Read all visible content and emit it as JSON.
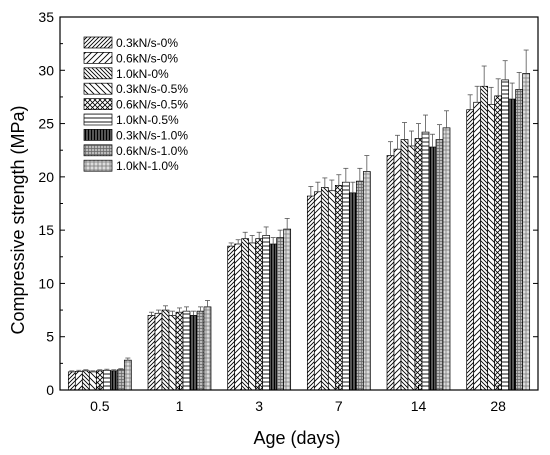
{
  "chart_data": {
    "type": "bar",
    "xlabel": "Age (days)",
    "ylabel": "Compressive strength (MPa)",
    "ylim": [
      0,
      35
    ],
    "yticks": [
      0,
      5,
      10,
      15,
      20,
      25,
      30,
      35
    ],
    "categories": [
      "0.5",
      "1",
      "3",
      "7",
      "14",
      "28"
    ],
    "legend_position": "top-left",
    "grid": false,
    "error_bars": true,
    "series": [
      {
        "name": "0.3kN/s-0%",
        "pattern": "diag-right",
        "values": [
          1.7,
          7.0,
          13.5,
          18.2,
          22.0,
          26.3
        ],
        "errors": [
          0.1,
          0.3,
          0.3,
          0.9,
          1.3,
          1.4
        ]
      },
      {
        "name": "0.6kN/s-0%",
        "pattern": "diag-right-sparse",
        "values": [
          1.75,
          7.2,
          13.7,
          18.6,
          22.6,
          27.0
        ],
        "errors": [
          0.1,
          0.3,
          0.4,
          0.9,
          1.3,
          1.5
        ]
      },
      {
        "name": "1.0kN-0%",
        "pattern": "diag-left",
        "values": [
          1.8,
          7.5,
          14.2,
          19.0,
          23.5,
          28.5
        ],
        "errors": [
          0.1,
          0.4,
          0.6,
          0.9,
          1.6,
          1.9
        ]
      },
      {
        "name": "0.3kN/s-0.5%",
        "pattern": "diag-left-sparse",
        "values": [
          1.7,
          7.0,
          13.8,
          18.7,
          22.9,
          26.8
        ],
        "errors": [
          0.1,
          0.4,
          0.7,
          1.0,
          1.4,
          1.6
        ]
      },
      {
        "name": "0.6kN/s-0.5%",
        "pattern": "cross-diag",
        "values": [
          1.8,
          7.3,
          14.2,
          19.2,
          23.6,
          27.6
        ],
        "errors": [
          0.1,
          0.4,
          0.6,
          1.0,
          1.4,
          1.6
        ]
      },
      {
        "name": "1.0kN-0.5%",
        "pattern": "horizontal",
        "values": [
          1.85,
          7.4,
          14.5,
          19.5,
          24.2,
          29.1
        ],
        "errors": [
          0.1,
          0.4,
          0.8,
          1.3,
          1.6,
          1.8
        ]
      },
      {
        "name": "0.3kN/s-1.0%",
        "pattern": "dense-vertical",
        "values": [
          1.8,
          7.0,
          13.7,
          18.5,
          22.8,
          27.3
        ],
        "errors": [
          0.1,
          0.4,
          0.6,
          1.0,
          1.2,
          1.5
        ]
      },
      {
        "name": "0.6kN/s-1.0%",
        "pattern": "grid-fine",
        "values": [
          1.9,
          7.4,
          14.3,
          19.6,
          23.5,
          28.2
        ],
        "errors": [
          0.1,
          0.4,
          0.7,
          1.2,
          1.4,
          1.6
        ]
      },
      {
        "name": "1.0kN-1.0%",
        "pattern": "grid-coarse",
        "values": [
          2.8,
          7.8,
          15.1,
          20.5,
          24.6,
          29.7
        ],
        "errors": [
          0.2,
          0.6,
          1.0,
          1.5,
          1.6,
          2.2
        ]
      }
    ]
  }
}
